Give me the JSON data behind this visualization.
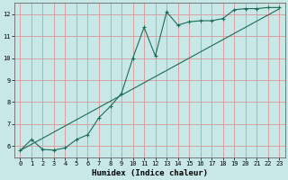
{
  "title": "",
  "xlabel": "Humidex (Indice chaleur)",
  "ylabel": "",
  "background_color": "#c8e8e8",
  "plot_bg_color": "#c8e8e8",
  "grid_color": "#d8a0a0",
  "line_color": "#1a6b5a",
  "xlim": [
    -0.5,
    23.5
  ],
  "ylim": [
    5.5,
    12.5
  ],
  "xticks": [
    0,
    1,
    2,
    3,
    4,
    5,
    6,
    7,
    8,
    9,
    10,
    11,
    12,
    13,
    14,
    15,
    16,
    17,
    18,
    19,
    20,
    21,
    22,
    23
  ],
  "yticks": [
    6,
    7,
    8,
    9,
    10,
    11,
    12
  ],
  "series1_x": [
    0,
    1,
    2,
    3,
    4,
    5,
    6,
    7,
    8,
    9,
    10,
    11,
    12,
    13,
    14,
    15,
    16,
    17,
    18,
    19,
    20,
    21,
    22,
    23
  ],
  "series1_y": [
    5.8,
    6.3,
    5.85,
    5.82,
    5.92,
    6.3,
    6.52,
    7.3,
    7.8,
    8.4,
    10.0,
    11.4,
    10.1,
    12.1,
    11.5,
    11.65,
    11.7,
    11.7,
    11.8,
    12.2,
    12.25,
    12.25,
    12.3,
    12.3
  ],
  "series2_x": [
    0,
    1,
    2,
    3,
    4,
    5,
    6,
    7,
    8,
    9,
    10,
    11,
    12,
    13,
    14,
    15,
    16,
    17,
    18,
    19,
    20,
    21,
    22,
    23
  ],
  "series2_y": [
    5.8,
    6.08,
    6.36,
    6.64,
    6.92,
    7.2,
    7.48,
    7.76,
    8.04,
    8.32,
    8.6,
    8.88,
    9.16,
    9.44,
    9.72,
    10.0,
    10.28,
    10.56,
    10.84,
    11.12,
    11.4,
    11.68,
    11.96,
    12.24
  ],
  "figsize": [
    3.2,
    2.0
  ],
  "dpi": 100,
  "tick_fontsize": 5.0,
  "xlabel_fontsize": 6.5
}
